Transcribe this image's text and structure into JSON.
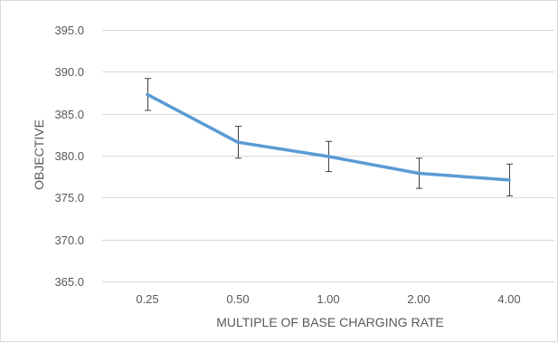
{
  "chart_data": {
    "type": "line",
    "categories": [
      "0.25",
      "0.50",
      "1.00",
      "2.00",
      "4.00"
    ],
    "series": [
      {
        "values": [
          387.3,
          381.6,
          379.9,
          377.9,
          377.1
        ],
        "error": [
          1.9,
          1.9,
          1.8,
          1.8,
          1.9
        ],
        "color": "#5B9BD5"
      }
    ],
    "ylim": [
      365,
      395
    ],
    "yticks": [
      365,
      370,
      375,
      380,
      385,
      390,
      395
    ],
    "ytick_labels": [
      "365.0",
      "370.0",
      "375.0",
      "380.0",
      "385.0",
      "390.0",
      "395.0"
    ],
    "xlabel": "MULTIPLE OF BASE CHARGING RATE",
    "ylabel": "OBJECTIVE",
    "grid": "horizontal",
    "gridline_color": "#d9d9d9",
    "errorbar_color": "#404040"
  }
}
